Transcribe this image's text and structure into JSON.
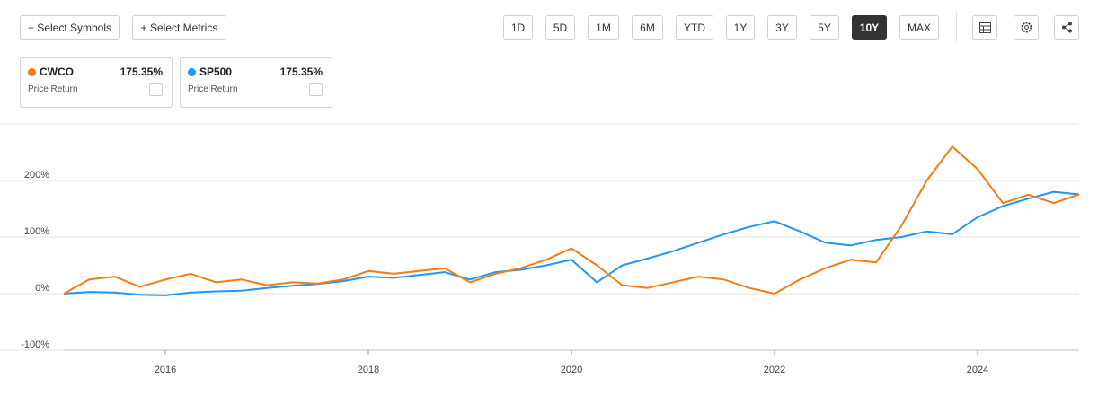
{
  "toolbar": {
    "actions": [
      "+ Select Symbols",
      "+ Select Metrics"
    ],
    "ranges": [
      "1D",
      "5D",
      "1M",
      "6M",
      "YTD",
      "1Y",
      "3Y",
      "5Y",
      "10Y",
      "MAX"
    ],
    "selected_range": 8
  },
  "legend_cards": [
    {
      "value": "175.35%",
      "label": "Price Return"
    },
    {
      "value": "175.35%",
      "label": "Price Return"
    }
  ],
  "chart_data": {
    "type": "line",
    "x": [
      2015.0,
      2015.25,
      2015.5,
      2015.75,
      2016.0,
      2016.25,
      2016.5,
      2016.75,
      2017.0,
      2017.25,
      2017.5,
      2017.75,
      2018.0,
      2018.25,
      2018.5,
      2018.75,
      2019.0,
      2019.25,
      2019.5,
      2019.75,
      2020.0,
      2020.25,
      2020.5,
      2020.75,
      2021.0,
      2021.25,
      2021.5,
      2021.75,
      2022.0,
      2022.25,
      2022.5,
      2022.75,
      2023.0,
      2023.25,
      2023.5,
      2023.75,
      2024.0,
      2024.25,
      2024.5,
      2024.75,
      2025.0
    ],
    "series": [
      {
        "name": "CWCO",
        "color": "#f57c14",
        "values": [
          0,
          25,
          30,
          12,
          25,
          35,
          20,
          25,
          15,
          20,
          18,
          25,
          40,
          35,
          40,
          45,
          20,
          35,
          45,
          60,
          80,
          50,
          15,
          10,
          20,
          30,
          25,
          10,
          0,
          25,
          45,
          60,
          55,
          120,
          200,
          260,
          220,
          160,
          175,
          160,
          175.35
        ]
      },
      {
        "name": "SP500",
        "color": "#2196f3",
        "values": [
          0,
          3,
          2,
          -2,
          -3,
          2,
          4,
          5,
          10,
          14,
          17,
          22,
          30,
          28,
          33,
          38,
          25,
          38,
          42,
          50,
          60,
          20,
          50,
          62,
          75,
          90,
          105,
          118,
          128,
          110,
          90,
          85,
          95,
          100,
          110,
          105,
          135,
          155,
          168,
          180,
          175.35
        ]
      }
    ],
    "xlim": [
      2015,
      2025
    ],
    "xticks": [
      2016,
      2018,
      2020,
      2022,
      2024
    ],
    "ylim": [
      -100,
      300
    ],
    "yticks": [
      {
        "value": -100,
        "label": "-100%"
      },
      {
        "value": 0,
        "label": "0%"
      },
      {
        "value": 100,
        "label": "100%"
      },
      {
        "value": 200,
        "label": "200%"
      }
    ],
    "grid": true
  }
}
